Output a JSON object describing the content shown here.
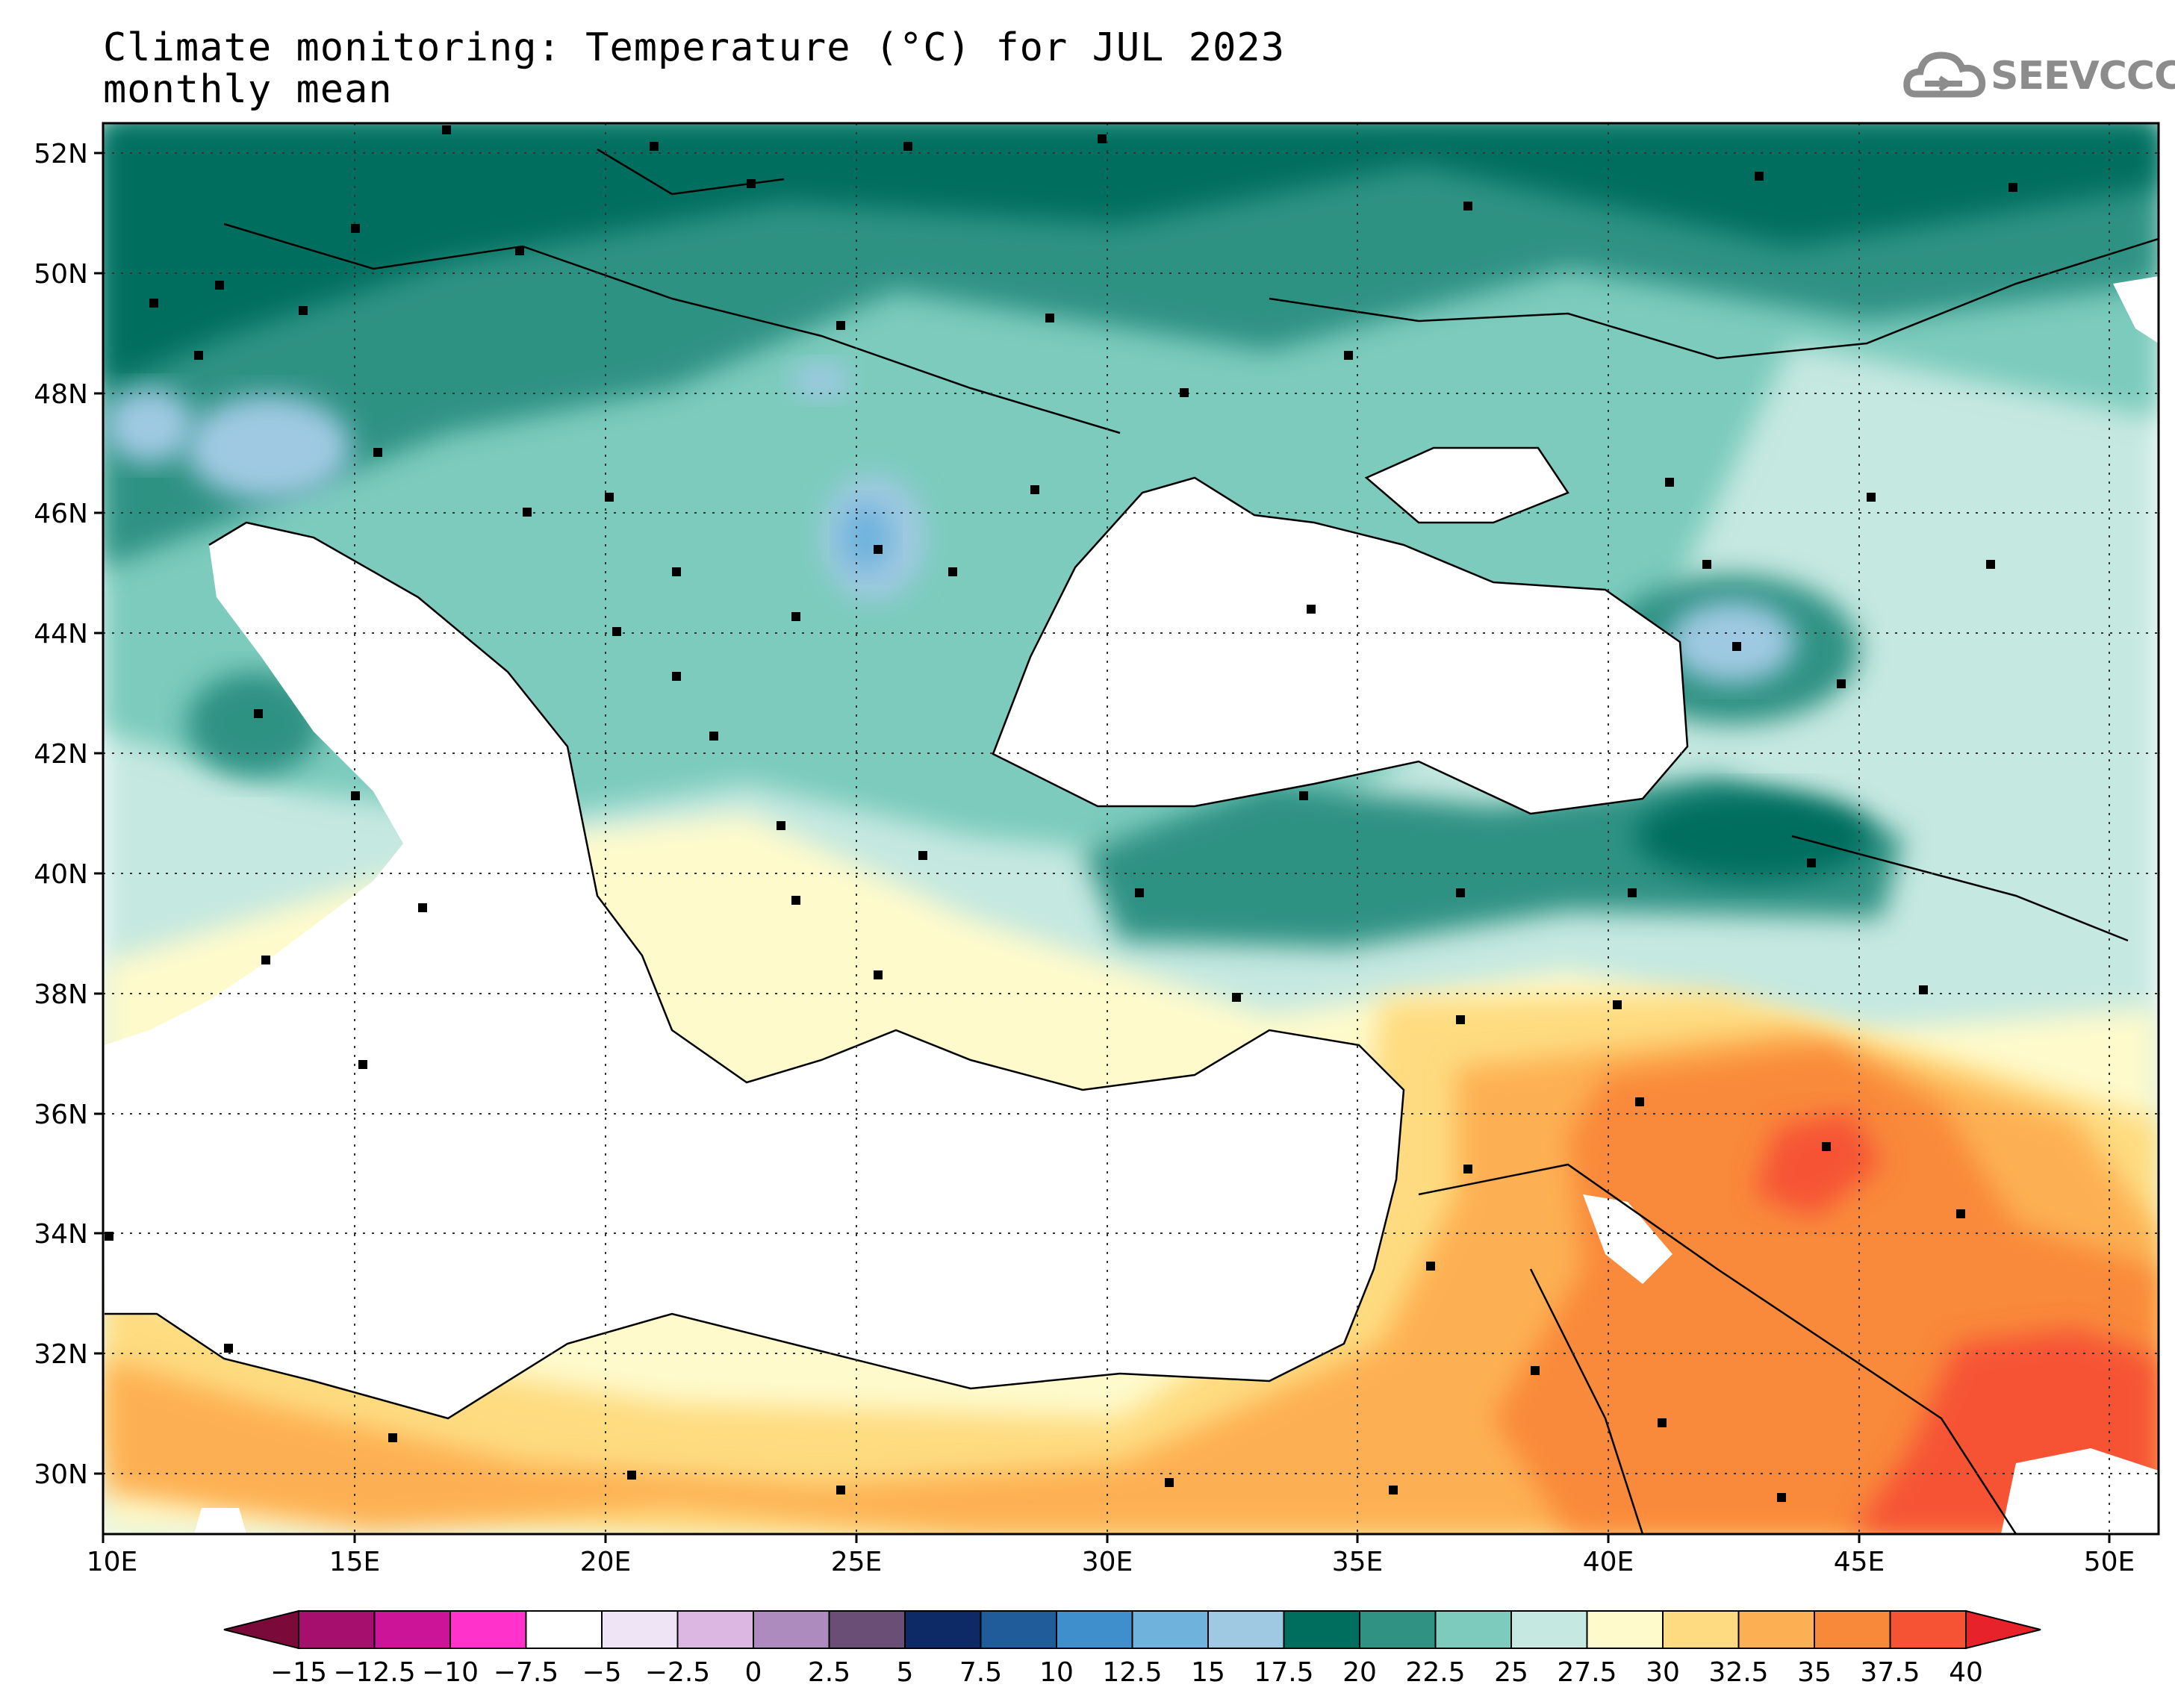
{
  "title": {
    "line1": "Climate monitoring: Temperature (°C) for JUL 2023",
    "line2": "monthly mean"
  },
  "logo": {
    "text": "SEEVCCC",
    "icon": "cloud-icon"
  },
  "map": {
    "lon_range": [
      10,
      51
    ],
    "lat_range": [
      29,
      52.5
    ],
    "lat_ticks": [
      "52N",
      "50N",
      "48N",
      "46N",
      "44N",
      "42N",
      "40N",
      "38N",
      "36N",
      "34N",
      "32N",
      "30N"
    ],
    "lon_ticks": [
      "10E",
      "15E",
      "20E",
      "25E",
      "30E",
      "35E",
      "40E",
      "45E",
      "50E"
    ],
    "gridlines": "dotted",
    "stations": "black square markers"
  },
  "colorbar": {
    "colors": [
      "#7a0a3a",
      "#a60f6d",
      "#cc1499",
      "#ff33cc",
      "#ffffff",
      "#efe4f5",
      "#dbb7e2",
      "#ad8bbf",
      "#6b4e75",
      "#0d2a66",
      "#1f5c99",
      "#3f8fcc",
      "#6fb2dc",
      "#9fc9e2",
      "#006e5f",
      "#2f9283",
      "#7ccbbd",
      "#c5e8e0",
      "#fefacc",
      "#fedb80",
      "#fdb053",
      "#f9893a",
      "#f65335",
      "#e8222a"
    ],
    "labels": [
      "−15",
      "−12.5",
      "−10",
      "−7.5",
      "−5",
      "−2.5",
      "0",
      "2.5",
      "5",
      "7.5",
      "10",
      "12.5",
      "15",
      "17.5",
      "20",
      "22.5",
      "25",
      "27.5",
      "30",
      "32.5",
      "35",
      "37.5",
      "40"
    ]
  },
  "field_colors": {
    "t20": "#006e5f",
    "t22": "#2f9283",
    "t25": "#7ccbbd",
    "t27": "#c5e8e0",
    "t30": "#fefacc",
    "t32": "#fedb80",
    "t35": "#fdb053",
    "t37": "#f9893a",
    "t40": "#f65335",
    "cool15": "#9fc9e2",
    "cool12": "#6fb2dc",
    "sea": "#ffffff"
  }
}
